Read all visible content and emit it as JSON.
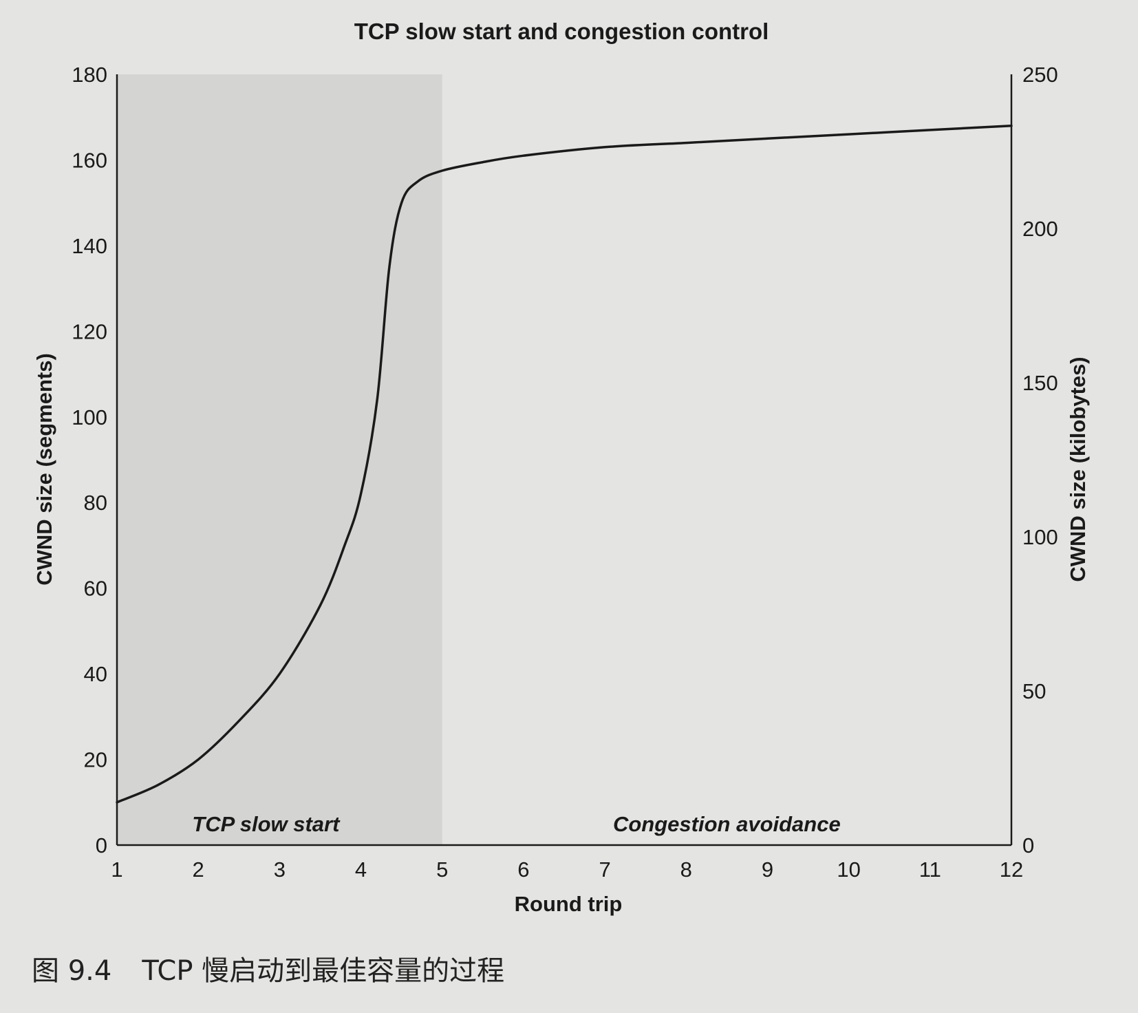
{
  "chart_data": {
    "type": "line",
    "title": "TCP slow start and congestion control",
    "xlabel": "Round trip",
    "ylabel": "CWND size (segments)",
    "y2label": "CWND size (kilobytes)",
    "xlim": [
      1,
      12
    ],
    "ylim": [
      0,
      180
    ],
    "y2lim": [
      0,
      250
    ],
    "x_ticks": [
      1,
      2,
      3,
      4,
      5,
      6,
      7,
      8,
      9,
      10,
      11,
      12
    ],
    "y_ticks": [
      0,
      20,
      40,
      60,
      80,
      100,
      120,
      140,
      160,
      180
    ],
    "y2_ticks": [
      0,
      50,
      100,
      150,
      200,
      250
    ],
    "grid": false,
    "regions": [
      {
        "label": "TCP slow start",
        "x_start": 1,
        "x_end": 5,
        "color": "#d4d4d2"
      },
      {
        "label": "Congestion avoidance",
        "x_start": 5,
        "x_end": 12,
        "color": "#e4e4e2"
      }
    ],
    "series": [
      {
        "color": "#1a1a1a",
        "x": [
          1,
          1.5,
          2,
          2.5,
          3,
          3.5,
          3.8,
          4,
          4.2,
          4.35,
          4.5,
          4.7,
          5,
          5.5,
          6,
          7,
          8,
          9,
          10,
          11,
          12
        ],
        "y": [
          10,
          14,
          20,
          29,
          40,
          56,
          70,
          82,
          104,
          135,
          150,
          155,
          157.5,
          159.5,
          161,
          163,
          164,
          165,
          166,
          167,
          168
        ]
      }
    ]
  },
  "figure_caption": {
    "number": "图 9.4",
    "text": "TCP 慢启动到最佳容量的过程"
  }
}
